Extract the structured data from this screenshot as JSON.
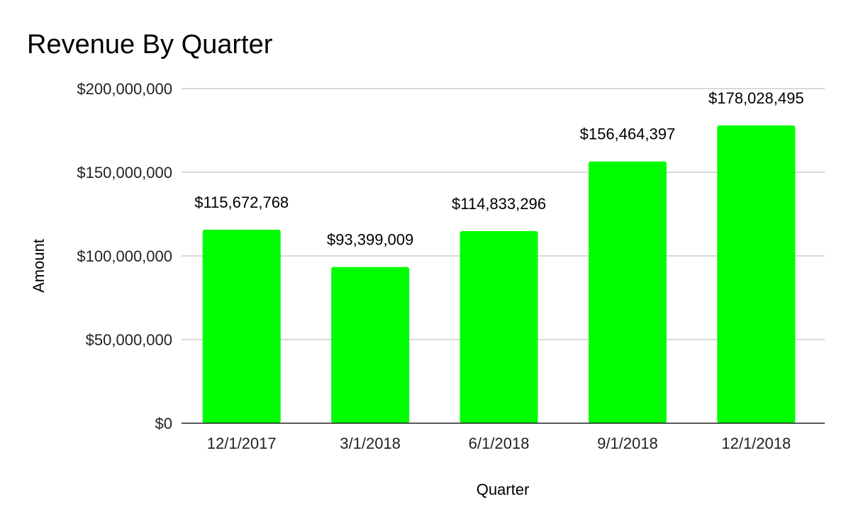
{
  "chart_data": {
    "type": "bar",
    "title": "Revenue By Quarter",
    "xlabel": "Quarter",
    "ylabel": "Amount",
    "categories": [
      "12/1/2017",
      "3/1/2018",
      "6/1/2018",
      "9/1/2018",
      "12/1/2018"
    ],
    "series": [
      {
        "name": "Amount",
        "values": [
          115672768,
          93399009,
          114833296,
          156464397,
          178028495
        ],
        "data_labels": [
          "$115,672,768",
          "$93,399,009",
          "$114,833,296",
          "$156,464,397",
          "$178,028,495"
        ],
        "color": "#00ff00"
      }
    ],
    "ylim": [
      0,
      200000000
    ],
    "yticks": [
      0,
      50000000,
      100000000,
      150000000,
      200000000
    ],
    "ytick_labels": [
      "$0",
      "$50,000,000",
      "$100,000,000",
      "$150,000,000",
      "$200,000,000"
    ],
    "grid": true,
    "legend": "none"
  }
}
